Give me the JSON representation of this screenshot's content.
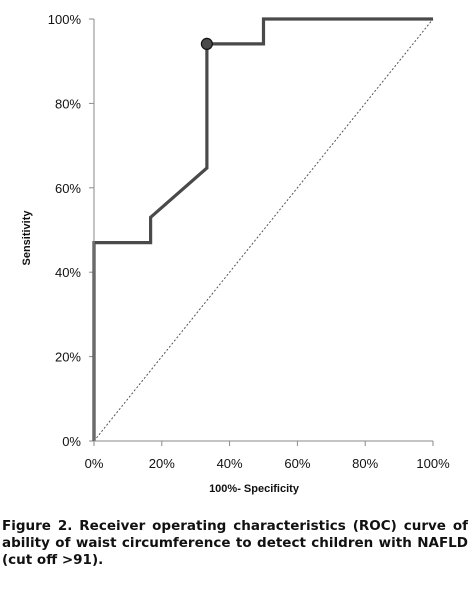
{
  "chart_data": {
    "type": "line",
    "title": "",
    "xlabel": "100%- Specificity",
    "ylabel": "Sensitivity",
    "xlim": [
      0,
      100
    ],
    "ylim": [
      0,
      100
    ],
    "x_ticks": [
      "0%",
      "20%",
      "40%",
      "60%",
      "80%",
      "100%"
    ],
    "y_ticks": [
      "0%",
      "20%",
      "40%",
      "60%",
      "80%",
      "100%"
    ],
    "grid": false,
    "legend": "none",
    "series": [
      {
        "style": "solid-thick",
        "color": "#4a4a4a",
        "points": [
          [
            0,
            0
          ],
          [
            0,
            47
          ],
          [
            16.7,
            47
          ],
          [
            16.7,
            53
          ],
          [
            33.3,
            64.7
          ],
          [
            33.3,
            94.1
          ],
          [
            50,
            94.1
          ],
          [
            50,
            100
          ],
          [
            100,
            100
          ]
        ]
      },
      {
        "style": "dotted-reference",
        "color": "#555555",
        "points": [
          [
            0,
            0
          ],
          [
            100,
            100
          ]
        ]
      }
    ],
    "marker": {
      "x": 33.3,
      "y": 94.1,
      "color": "#4a4a4a"
    }
  },
  "caption": "Figure 2. Receiver operating characteristics (ROC) curve of ability of waist circumference to detect children with NAFLD (cut off >91)."
}
